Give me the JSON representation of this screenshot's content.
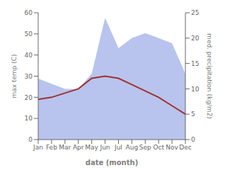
{
  "chart_data": {
    "type": "line",
    "xlabel": "date (month)",
    "ylabel": "max temp (C)",
    "y2label": "med. precipitation (kg/m2)",
    "categories": [
      "Jan",
      "Feb",
      "Mar",
      "Apr",
      "May",
      "Jun",
      "Jul",
      "Aug",
      "Sep",
      "Oct",
      "Nov",
      "Dec"
    ],
    "series": [
      {
        "type": "area",
        "axis": "y2",
        "color": "#b8c4ee",
        "values": [
          12,
          11,
          10,
          10,
          13,
          24,
          18,
          20,
          21,
          20,
          19,
          13
        ]
      },
      {
        "type": "line",
        "color": "#a03030",
        "values": [
          19,
          20,
          22,
          24,
          29,
          30,
          29,
          26,
          23,
          20,
          16,
          12
        ]
      }
    ],
    "ylim": [
      0,
      60
    ],
    "yticks": [
      0,
      10,
      20,
      30,
      40,
      50,
      60
    ],
    "y2lim": [
      0,
      25
    ],
    "y2ticks": [
      0,
      5,
      10,
      15,
      20,
      25
    ],
    "grid": false
  }
}
